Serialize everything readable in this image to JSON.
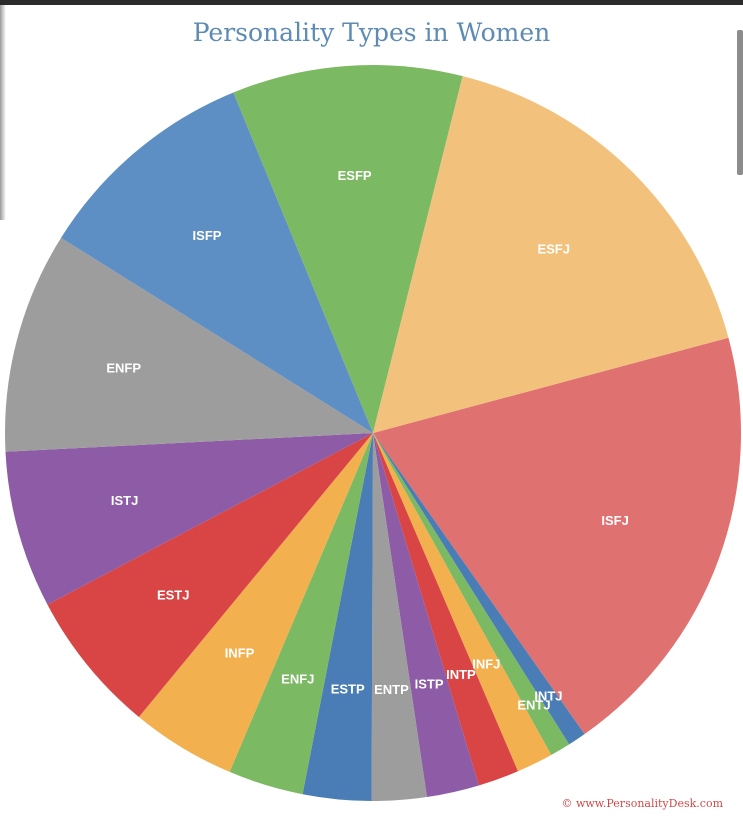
{
  "title": "Personality Types in Women",
  "credit": "© www.PersonalityDesk.com",
  "chart_data": {
    "type": "pie",
    "title": "Personality Types in Women",
    "start_angle_deg": 75,
    "direction": "clockwise",
    "slices": [
      {
        "label": "ISFJ",
        "value": 19.4,
        "color": "#e07171"
      },
      {
        "label": "INTJ",
        "value": 0.8,
        "color": "#4a7db5"
      },
      {
        "label": "ENTJ",
        "value": 0.9,
        "color": "#7cb963"
      },
      {
        "label": "INFJ",
        "value": 1.6,
        "color": "#f2b04f"
      },
      {
        "label": "INTP",
        "value": 1.8,
        "color": "#d94545"
      },
      {
        "label": "ISTP",
        "value": 2.3,
        "color": "#8e5ca6"
      },
      {
        "label": "ENTP",
        "value": 2.4,
        "color": "#9d9d9d"
      },
      {
        "label": "ESTP",
        "value": 3.0,
        "color": "#4a7db5"
      },
      {
        "label": "ENFJ",
        "value": 3.3,
        "color": "#7cb963"
      },
      {
        "label": "INFP",
        "value": 4.6,
        "color": "#f2b04f"
      },
      {
        "label": "ESTJ",
        "value": 6.3,
        "color": "#d94545"
      },
      {
        "label": "ISTJ",
        "value": 6.9,
        "color": "#8e5ca6"
      },
      {
        "label": "ENFP",
        "value": 9.7,
        "color": "#9d9d9d"
      },
      {
        "label": "ISFP",
        "value": 9.9,
        "color": "#5e8fc4"
      },
      {
        "label": "ESFP",
        "value": 10.1,
        "color": "#7cb963"
      },
      {
        "label": "ESFJ",
        "value": 16.9,
        "color": "#f2c27c"
      }
    ]
  }
}
